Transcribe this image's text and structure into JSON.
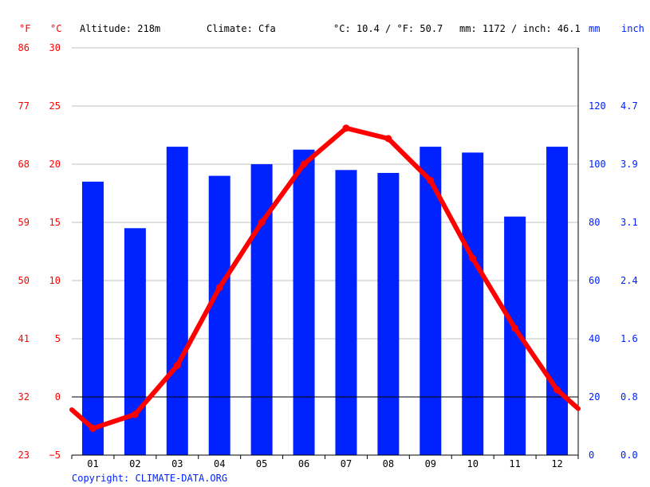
{
  "header": {
    "unit_f": "°F",
    "unit_c": "°C",
    "altitude": "Altitude: 218m",
    "climate": "Climate: Cfa",
    "avg_temp": "°C: 10.4 / °F: 50.7",
    "precip_total": "mm: 1172 / inch: 46.1",
    "unit_mm": "mm",
    "unit_inch": "inch"
  },
  "copyright": "Copyright: CLIMATE-DATA.ORG",
  "colors": {
    "temperature": "#ff0000",
    "precipitation": "#0022ff",
    "grid": "#c0c0c0",
    "zero_line": "#000000"
  },
  "chart_data": {
    "type": "bar",
    "categories": [
      "01",
      "02",
      "03",
      "04",
      "05",
      "06",
      "07",
      "08",
      "09",
      "10",
      "11",
      "12"
    ],
    "series": [
      {
        "kind": "bar",
        "axis": "right",
        "values": [
          94,
          78,
          106,
          96,
          100,
          105,
          98,
          97,
          106,
          104,
          82,
          106
        ]
      },
      {
        "kind": "line",
        "axis": "left",
        "values": [
          -2.7,
          -1.5,
          2.7,
          9.4,
          15.0,
          20.0,
          23.1,
          22.2,
          18.6,
          11.9,
          5.9,
          0.6
        ]
      }
    ],
    "line_start_value": -1.1,
    "line_end_value": -1.0,
    "y_left": {
      "range": [
        -5,
        30
      ],
      "ticks_c": [
        "30",
        "25",
        "20",
        "15",
        "10",
        "5",
        "0",
        "−5"
      ],
      "ticks_f": [
        "86",
        "77",
        "68",
        "59",
        "50",
        "41",
        "32",
        "23"
      ]
    },
    "y_right": {
      "range": [
        0,
        140
      ],
      "ticks_mm": [
        "120",
        "100",
        "80",
        "60",
        "40",
        "20",
        "0"
      ],
      "ticks_inch": [
        "4.7",
        "3.9",
        "3.1",
        "2.4",
        "1.6",
        "0.8",
        "0.0"
      ]
    },
    "grid": true
  }
}
